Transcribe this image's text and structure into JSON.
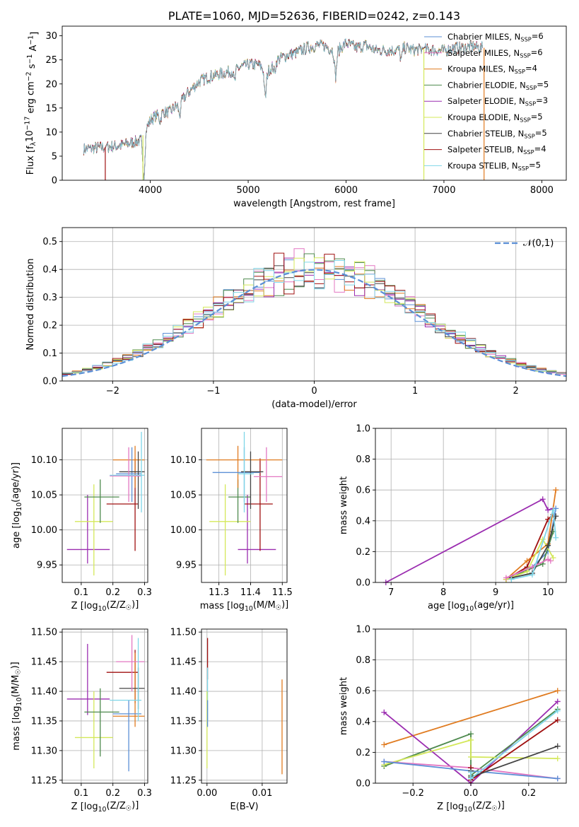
{
  "colors": {
    "Chabrier MILES": "#5b8fd6",
    "Salpeter MILES": "#e377c2",
    "Kroupa MILES": "#e07b20",
    "Chabrier ELODIE": "#4e8a4e",
    "Salpeter ELODIE": "#9b2db0",
    "Kroupa ELODIE": "#d4e85a",
    "Chabrier STELIB": "#444444",
    "Salpeter STELIB": "#a01010",
    "Kroupa STELIB": "#7fd6e8"
  },
  "chart_data": [
    {
      "id": "spectrum",
      "type": "line",
      "title": "PLATE=1060, MJD=52636, FIBERID=0242, z=0.143",
      "xlabel": "wavelength [Angstrom, rest frame]",
      "ylabel": "Flux [f$_\\lambda$10$^{-17}$ erg cm$^{-2}$ s$^{-1}$ A$^{-1}$]",
      "xlim": [
        3100,
        8250
      ],
      "ylim": [
        0,
        32
      ],
      "xticks": [
        "4000",
        "5000",
        "6000",
        "7000",
        "8000"
      ],
      "yticks": [
        "0",
        "5",
        "10",
        "15",
        "20",
        "25",
        "30"
      ],
      "legend": [
        {
          "label": "Chabrier MILES, N$_{SSP}$=6",
          "key": "Chabrier MILES"
        },
        {
          "label": "Salpeter MILES, N$_{SSP}$=6",
          "key": "Salpeter MILES"
        },
        {
          "label": "Kroupa MILES, N$_{SSP}$=4",
          "key": "Kroupa MILES"
        },
        {
          "label": "Chabrier ELODIE, N$_{SSP}$=5",
          "key": "Chabrier ELODIE"
        },
        {
          "label": "Salpeter ELODIE, N$_{SSP}$=3",
          "key": "Salpeter ELODIE"
        },
        {
          "label": "Kroupa ELODIE, N$_{SSP}$=5",
          "key": "Kroupa ELODIE"
        },
        {
          "label": "Chabrier STELIB, N$_{SSP}$=5",
          "key": "Chabrier STELIB"
        },
        {
          "label": "Salpeter STELIB, N$_{SSP}$=4",
          "key": "Salpeter STELIB"
        },
        {
          "label": "Kroupa STELIB, N$_{SSP}$=5",
          "key": "Kroupa STELIB"
        }
      ],
      "legend_position": "upper right",
      "observed_continuum": [
        [
          3320,
          6.5
        ],
        [
          3500,
          6.8
        ],
        [
          3700,
          7.2
        ],
        [
          3900,
          8.3
        ],
        [
          4000,
          12.5
        ],
        [
          4100,
          14.0
        ],
        [
          4200,
          14.2
        ],
        [
          4300,
          16.0
        ],
        [
          4400,
          18.5
        ],
        [
          4500,
          20.5
        ],
        [
          4600,
          21.5
        ],
        [
          4700,
          22.0
        ],
        [
          4800,
          22.5
        ],
        [
          4900,
          23.3
        ],
        [
          5000,
          24.0
        ],
        [
          5100,
          24.0
        ],
        [
          5200,
          22.5
        ],
        [
          5300,
          25.0
        ],
        [
          5400,
          26.0
        ],
        [
          5500,
          26.5
        ],
        [
          5600,
          27.5
        ],
        [
          5700,
          28.0
        ],
        [
          5800,
          27.8
        ],
        [
          5900,
          26.5
        ],
        [
          6000,
          28.5
        ],
        [
          6100,
          27.5
        ],
        [
          6200,
          28.0
        ],
        [
          6300,
          27.0
        ],
        [
          6400,
          27.0
        ],
        [
          6500,
          27.0
        ],
        [
          6600,
          27.5
        ],
        [
          6700,
          27.0
        ],
        [
          6800,
          27.2
        ],
        [
          6900,
          27.0
        ],
        [
          7000,
          26.8
        ],
        [
          7100,
          27.5
        ],
        [
          7200,
          27.5
        ],
        [
          7300,
          27.8
        ],
        [
          7380,
          27.5
        ]
      ],
      "absorption_features": [
        [
          3934,
          0
        ],
        [
          4100,
          12.5
        ],
        [
          4300,
          13.5
        ],
        [
          4861,
          20.5
        ],
        [
          5175,
          17.0
        ],
        [
          5270,
          22.5
        ],
        [
          5893,
          21.5
        ],
        [
          6563,
          25.0
        ]
      ],
      "masked_regions": [
        [
          3530,
          3560
        ],
        [
          3910,
          3930
        ],
        [
          6785,
          6800
        ],
        [
          7395,
          7420
        ]
      ],
      "grid": false
    },
    {
      "id": "residuals",
      "type": "histogram",
      "xlabel": "(data-model)/error",
      "ylabel": "Normed distribution",
      "xlim": [
        -2.5,
        2.5
      ],
      "ylim": [
        0,
        0.55
      ],
      "xticks": [
        "−2",
        "−1",
        "0",
        "1",
        "2"
      ],
      "yticks": [
        "0.0",
        "0.1",
        "0.2",
        "0.3",
        "0.4",
        "0.5"
      ],
      "bin_width": 0.1,
      "reference": {
        "label": "$\\mathcal{N}(0,1)$",
        "mean": 0,
        "sigma": 1,
        "color": "#5b8fd6",
        "style": "dashed"
      },
      "legend_position": "upper right",
      "grid": true
    },
    {
      "id": "age_vs_Z",
      "type": "errorbar",
      "xlabel": "Z [log$_{10}$(Z/Z$_\\odot$)]",
      "ylabel": "age  [log$_{10}$(age/yr)]",
      "xlim": [
        0.04,
        0.31
      ],
      "ylim": [
        9.925,
        10.145
      ],
      "xticks": [
        0.1,
        0.2,
        0.3
      ],
      "xtick_labels": [
        "0.1",
        "0.2",
        "0.3"
      ],
      "yticks": [
        9.95,
        10.0,
        10.05,
        10.1
      ],
      "ytick_labels": [
        "9.95",
        "10.00",
        "10.05",
        "10.10"
      ],
      "points": [
        {
          "key": "Salpeter ELODIE",
          "x": 0.12,
          "xlo": 0.055,
          "xhi": 0.19,
          "y": 9.972,
          "ylo": 9.952,
          "yhi": 10.05
        },
        {
          "key": "Kroupa ELODIE",
          "x": 0.14,
          "xlo": 0.08,
          "xhi": 0.2,
          "y": 10.012,
          "ylo": 9.935,
          "yhi": 10.065
        },
        {
          "key": "Chabrier ELODIE",
          "x": 0.16,
          "xlo": 0.11,
          "xhi": 0.22,
          "y": 10.047,
          "ylo": 10.01,
          "yhi": 10.072
        },
        {
          "key": "Salpeter STELIB",
          "x": 0.27,
          "xlo": 0.18,
          "xhi": 0.28,
          "y": 10.037,
          "ylo": 9.97,
          "yhi": 10.102
        },
        {
          "key": "Kroupa MILES",
          "x": 0.27,
          "xlo": 0.2,
          "xhi": 0.3,
          "y": 10.1,
          "ylo": 10.06,
          "yhi": 10.12
        },
        {
          "key": "Chabrier MILES",
          "x": 0.26,
          "xlo": 0.21,
          "xhi": 0.29,
          "y": 10.08,
          "ylo": 10.04,
          "yhi": 10.118
        },
        {
          "key": "Chabrier STELIB",
          "x": 0.28,
          "xlo": 0.22,
          "xhi": 0.3,
          "y": 10.083,
          "ylo": 10.03,
          "yhi": 10.112
        },
        {
          "key": "Salpeter MILES",
          "x": 0.25,
          "xlo": 0.19,
          "xhi": 0.29,
          "y": 10.077,
          "ylo": 10.04,
          "yhi": 10.118
        },
        {
          "key": "Kroupa STELIB",
          "x": 0.29,
          "xlo": 0.19,
          "xhi": 0.3,
          "y": 10.078,
          "ylo": 10.025,
          "yhi": 10.14
        }
      ],
      "grid": true
    },
    {
      "id": "age_vs_mass",
      "type": "errorbar",
      "xlabel": "mass [log$_{10}$(M/M$_\\odot$)]",
      "ylabel": "",
      "xlim": [
        11.245,
        11.515
      ],
      "ylim": [
        9.925,
        10.145
      ],
      "xticks": [
        11.3,
        11.4,
        11.5
      ],
      "xtick_labels": [
        "11.3",
        "11.4",
        "11.5"
      ],
      "yticks": [
        9.95,
        10.0,
        10.05,
        10.1
      ],
      "ytick_labels": [
        "9.95",
        "10.00",
        "10.05",
        "10.10"
      ],
      "points": [
        {
          "key": "Salpeter ELODIE",
          "x": 11.39,
          "xlo": 11.36,
          "xhi": 11.48,
          "y": 9.972,
          "ylo": 9.952,
          "yhi": 10.05
        },
        {
          "key": "Kroupa ELODIE",
          "x": 11.32,
          "xlo": 11.27,
          "xhi": 11.4,
          "y": 10.012,
          "ylo": 9.935,
          "yhi": 10.065
        },
        {
          "key": "Chabrier ELODIE",
          "x": 11.36,
          "xlo": 11.33,
          "xhi": 11.4,
          "y": 10.047,
          "ylo": 10.01,
          "yhi": 10.072
        },
        {
          "key": "Salpeter STELIB",
          "x": 11.43,
          "xlo": 11.38,
          "xhi": 11.47,
          "y": 10.037,
          "ylo": 9.97,
          "yhi": 10.102
        },
        {
          "key": "Kroupa MILES",
          "x": 11.36,
          "xlo": 11.26,
          "xhi": 11.5,
          "y": 10.1,
          "ylo": 10.06,
          "yhi": 10.12
        },
        {
          "key": "Chabrier MILES",
          "x": 11.38,
          "xlo": 11.28,
          "xhi": 11.43,
          "y": 10.082,
          "ylo": 10.04,
          "yhi": 10.118
        },
        {
          "key": "Chabrier STELIB",
          "x": 11.4,
          "xlo": 11.37,
          "xhi": 11.44,
          "y": 10.083,
          "ylo": 10.03,
          "yhi": 10.112
        },
        {
          "key": "Salpeter MILES",
          "x": 11.45,
          "xlo": 11.41,
          "xhi": 11.5,
          "y": 10.076,
          "ylo": 10.04,
          "yhi": 10.118
        },
        {
          "key": "Kroupa STELIB",
          "x": 11.38,
          "xlo": 11.36,
          "xhi": 11.41,
          "y": 10.08,
          "ylo": 10.025,
          "yhi": 10.14
        }
      ],
      "grid": true
    },
    {
      "id": "mass_weight_vs_age",
      "type": "line",
      "xlabel": "age  [log$_{10}$(age/yr)]",
      "ylabel": "mass weight",
      "xlim": [
        6.7,
        10.35
      ],
      "ylim": [
        0,
        1.0
      ],
      "xticks": [
        7,
        8,
        9,
        10
      ],
      "xtick_labels": [
        "7",
        "8",
        "9",
        "10"
      ],
      "yticks": [
        0,
        0.2,
        0.4,
        0.6,
        0.8,
        1.0
      ],
      "ytick_labels": [
        "0.0",
        "0.2",
        "0.4",
        "0.6",
        "0.8",
        "1.0"
      ],
      "series": [
        {
          "key": "Salpeter ELODIE",
          "x": [
            6.9,
            9.9,
            10.0,
            10.1
          ],
          "y": [
            0.0,
            0.54,
            0.47,
            0.48
          ]
        },
        {
          "key": "Salpeter STELIB",
          "x": [
            9.2,
            9.6,
            10.0,
            10.1
          ],
          "y": [
            0.02,
            0.1,
            0.41,
            0.44
          ]
        },
        {
          "key": "Kroupa MILES",
          "x": [
            9.2,
            9.6,
            10.0,
            10.15
          ],
          "y": [
            0.02,
            0.14,
            0.25,
            0.6
          ]
        },
        {
          "key": "Chabrier MILES",
          "x": [
            9.3,
            9.7,
            10.0,
            10.15
          ],
          "y": [
            0.03,
            0.1,
            0.2,
            0.48
          ]
        },
        {
          "key": "Chabrier ELODIE",
          "x": [
            9.3,
            9.6,
            9.9,
            10.1
          ],
          "y": [
            0.03,
            0.08,
            0.12,
            0.33
          ]
        },
        {
          "key": "Kroupa ELODIE",
          "x": [
            9.2,
            9.6,
            9.9,
            10.1
          ],
          "y": [
            0.02,
            0.07,
            0.28,
            0.16
          ]
        },
        {
          "key": "Chabrier STELIB",
          "x": [
            9.3,
            9.7,
            10.0,
            10.15
          ],
          "y": [
            0.03,
            0.06,
            0.24,
            0.43
          ]
        },
        {
          "key": "Salpeter MILES",
          "x": [
            9.2,
            9.7,
            10.0,
            10.05
          ],
          "y": [
            0.03,
            0.1,
            0.15,
            0.14
          ]
        },
        {
          "key": "Kroupa STELIB",
          "x": [
            9.3,
            9.7,
            10.1,
            10.15
          ],
          "y": [
            0.02,
            0.05,
            0.47,
            0.29
          ]
        }
      ],
      "marker": "+",
      "grid": true
    },
    {
      "id": "mass_vs_Z",
      "type": "errorbar",
      "xlabel": "Z [log$_{10}$(Z/Z$_\\odot$)]",
      "ylabel": "mass [log$_{10}$(M/M$_\\odot$)]",
      "xlim": [
        0.04,
        0.31
      ],
      "ylim": [
        11.245,
        11.505
      ],
      "xticks": [
        0.1,
        0.2,
        0.3
      ],
      "xtick_labels": [
        "0.1",
        "0.2",
        "0.3"
      ],
      "yticks": [
        11.25,
        11.3,
        11.35,
        11.4,
        11.45,
        11.5
      ],
      "ytick_labels": [
        "11.25",
        "11.30",
        "11.35",
        "11.40",
        "11.45",
        "11.50"
      ],
      "points": [
        {
          "key": "Salpeter ELODIE",
          "x": 0.12,
          "xlo": 0.055,
          "xhi": 0.19,
          "y": 11.387,
          "ylo": 11.36,
          "yhi": 11.48
        },
        {
          "key": "Kroupa ELODIE",
          "x": 0.14,
          "xlo": 0.08,
          "xhi": 0.2,
          "y": 11.322,
          "ylo": 11.27,
          "yhi": 11.4
        },
        {
          "key": "Chabrier ELODIE",
          "x": 0.16,
          "xlo": 0.11,
          "xhi": 0.22,
          "y": 11.365,
          "ylo": 11.29,
          "yhi": 11.405
        },
        {
          "key": "Salpeter STELIB",
          "x": 0.27,
          "xlo": 0.18,
          "xhi": 0.28,
          "y": 11.432,
          "ylo": 11.38,
          "yhi": 11.47
        },
        {
          "key": "Kroupa MILES",
          "x": 0.27,
          "xlo": 0.2,
          "xhi": 0.3,
          "y": 11.358,
          "ylo": 11.34,
          "yhi": 11.465
        },
        {
          "key": "Chabrier MILES",
          "x": 0.25,
          "xlo": 0.2,
          "xhi": 0.29,
          "y": 11.362,
          "ylo": 11.265,
          "yhi": 11.385
        },
        {
          "key": "Chabrier STELIB",
          "x": 0.28,
          "xlo": 0.22,
          "xhi": 0.3,
          "y": 11.405,
          "ylo": 11.37,
          "yhi": 11.44
        },
        {
          "key": "Salpeter MILES",
          "x": 0.26,
          "xlo": 0.21,
          "xhi": 0.3,
          "y": 11.45,
          "ylo": 11.4,
          "yhi": 11.495
        },
        {
          "key": "Kroupa STELIB",
          "x": 0.28,
          "xlo": 0.19,
          "xhi": 0.29,
          "y": 11.385,
          "ylo": 11.35,
          "yhi": 11.49
        }
      ],
      "grid": true
    },
    {
      "id": "mass_vs_ebv",
      "type": "errorbar",
      "xlabel": "E(B-V)",
      "ylabel": "",
      "xlim": [
        -0.001,
        0.0145
      ],
      "ylim": [
        11.245,
        11.505
      ],
      "xticks": [
        0.0,
        0.01
      ],
      "xtick_labels": [
        "0.00",
        "0.01"
      ],
      "yticks": [
        11.25,
        11.3,
        11.35,
        11.4,
        11.45,
        11.5
      ],
      "ytick_labels": [
        "11.25",
        "11.30",
        "11.35",
        "11.40",
        "11.45",
        "11.50"
      ],
      "points": [
        {
          "key": "Salpeter STELIB",
          "x": 0.0001,
          "y": 11.45,
          "ylo": 11.42,
          "yhi": 11.49
        },
        {
          "key": "Kroupa STELIB",
          "x": 0.0001,
          "y": 11.38,
          "ylo": 11.35,
          "yhi": 11.44
        },
        {
          "key": "Kroupa ELODIE",
          "x": 0.0,
          "y": 11.32,
          "ylo": 11.27,
          "yhi": 11.4
        },
        {
          "key": "Chabrier MILES",
          "x": 0.0001,
          "y": 11.36,
          "ylo": 11.34,
          "yhi": 11.385
        },
        {
          "key": "Kroupa MILES",
          "x": 0.0136,
          "y": 11.34,
          "ylo": 11.26,
          "yhi": 11.42
        }
      ],
      "grid": true
    },
    {
      "id": "mass_weight_vs_Z",
      "type": "line",
      "xlabel": "Z [log$_{10}$(Z/Z$_\\odot$)]",
      "ylabel": "mass weight",
      "xlim": [
        -0.33,
        0.33
      ],
      "ylim": [
        0,
        1.0
      ],
      "xticks": [
        -0.2,
        0.0,
        0.2
      ],
      "xtick_labels": [
        "−0.2",
        "0.0",
        "0.2"
      ],
      "yticks": [
        0,
        0.2,
        0.4,
        0.6,
        0.8,
        1.0
      ],
      "ytick_labels": [
        "0.0",
        "0.2",
        "0.4",
        "0.6",
        "0.8",
        "1.0"
      ],
      "series": [
        {
          "key": "Kroupa MILES",
          "x": [
            -0.3,
            0.3
          ],
          "y": [
            0.25,
            0.6
          ]
        },
        {
          "key": "Salpeter ELODIE",
          "x": [
            -0.3,
            0.0,
            0.3
          ],
          "y": [
            0.46,
            0.0,
            0.53
          ]
        },
        {
          "key": "Chabrier ELODIE",
          "x": [
            -0.3,
            0.0,
            0.0,
            0.3
          ],
          "y": [
            0.11,
            0.32,
            0.05,
            0.48
          ]
        },
        {
          "key": "Kroupa ELODIE",
          "x": [
            -0.3,
            0.0,
            0.0,
            0.3
          ],
          "y": [
            0.12,
            0.28,
            0.17,
            0.16
          ]
        },
        {
          "key": "Salpeter MILES",
          "x": [
            -0.3,
            0.0,
            0.3
          ],
          "y": [
            0.14,
            0.1,
            0.03
          ]
        },
        {
          "key": "Chabrier MILES",
          "x": [
            -0.3,
            0.0,
            0.3
          ],
          "y": [
            0.14,
            0.08,
            0.03
          ]
        },
        {
          "key": "Salpeter STELIB",
          "x": [
            0.0,
            0.0,
            0.3
          ],
          "y": [
            0.1,
            0.02,
            0.41
          ]
        },
        {
          "key": "Chabrier STELIB",
          "x": [
            0.0,
            0.0,
            0.3
          ],
          "y": [
            0.08,
            0.04,
            0.24
          ]
        },
        {
          "key": "Kroupa STELIB",
          "x": [
            0.0,
            0.0,
            0.3
          ],
          "y": [
            0.07,
            0.03,
            0.47
          ]
        }
      ],
      "marker": "+",
      "grid": true
    }
  ]
}
